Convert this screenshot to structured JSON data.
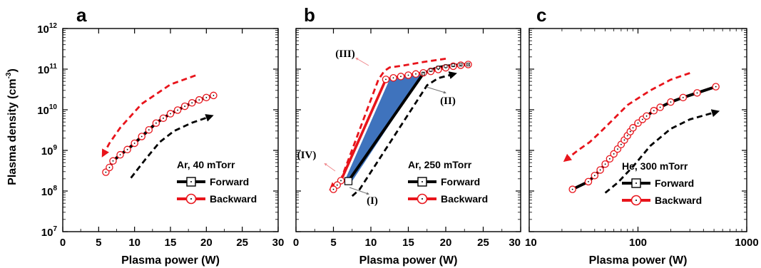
{
  "figure": {
    "ylabel_main": "Plasma density (cm",
    "ylabel_sup": "-3",
    "ylabel_end": ")"
  },
  "chart_data": [
    {
      "panel": "a",
      "type": "line",
      "xlabel": "Plasma power (W)",
      "xscale": "linear",
      "yscale": "log",
      "xlim": [
        0,
        30
      ],
      "ylim": [
        10000000,
        1000000000000
      ],
      "xticks": [
        0,
        5,
        10,
        15,
        20,
        25,
        30
      ],
      "yticks": [
        10000000,
        100000000,
        1000000000,
        10000000000,
        100000000000,
        1000000000000
      ],
      "legend": {
        "title": "Ar, 40 mTorr",
        "placement": "bottom-right",
        "entries": [
          "Forward",
          "Backward"
        ]
      },
      "series": [
        {
          "name": "Forward",
          "color": "#000000",
          "marker": "square-dot",
          "x": [
            6.0,
            6.5,
            7.0,
            8.0,
            9.0,
            10.0,
            11.0,
            12.0,
            13.0,
            14.0,
            15.0,
            16.0,
            17.0,
            18.0,
            19.0,
            20.0,
            21.0
          ],
          "y": [
            290000000,
            380000000,
            550000000,
            780000000,
            1050000000,
            1500000000,
            2200000000,
            3200000000,
            4700000000,
            6200000000,
            8000000000,
            9800000000,
            12200000000,
            14800000000,
            17500000000,
            20000000000,
            22500000000
          ]
        },
        {
          "name": "Backward",
          "color": "#e8141b",
          "marker": "open-circle-dot",
          "x": [
            6.0,
            6.5,
            7.0,
            8.0,
            9.0,
            10.0,
            11.0,
            12.0,
            13.0,
            14.0,
            15.0,
            16.0,
            17.0,
            18.0,
            19.0,
            20.0,
            21.0
          ],
          "y": [
            290000000,
            380000000,
            550000000,
            780000000,
            1050000000,
            1500000000,
            2200000000,
            3200000000,
            4700000000,
            6200000000,
            8000000000,
            9800000000,
            12200000000,
            14800000000,
            17500000000,
            20000000000,
            22500000000
          ]
        }
      ],
      "guides": [
        {
          "color": "#e8141b",
          "direction": "backward",
          "x": [
            18.5,
            15.0,
            11.0,
            8.0,
            6.5,
            5.7
          ],
          "y": [
            70000000000,
            42000000000,
            14000000000,
            3600000000,
            1500000000,
            820000000
          ]
        },
        {
          "color": "#000000",
          "direction": "forward",
          "x": [
            9.5,
            11.5,
            13.5,
            15.5,
            18.0,
            20.5
          ],
          "y": [
            210000000,
            600000000,
            1600000000,
            3000000000,
            4800000000,
            6800000000
          ]
        }
      ],
      "annotations": []
    },
    {
      "panel": "b",
      "type": "line",
      "xlabel": "Plasma power (W)",
      "xscale": "linear",
      "yscale": "log",
      "xlim": [
        0,
        30
      ],
      "ylim": [
        10000000,
        1000000000000
      ],
      "xticks": [
        0,
        5,
        10,
        15,
        20,
        25,
        30
      ],
      "yticks": [
        10000000,
        100000000,
        1000000000,
        10000000000,
        100000000000,
        1000000000000
      ],
      "legend": {
        "title": "Ar, 250 mTorr",
        "placement": "bottom-right",
        "entries": [
          "Forward",
          "Backward"
        ]
      },
      "series": [
        {
          "name": "Forward",
          "color": "#000000",
          "marker": "square-dot",
          "x": [
            7.0,
            17.0,
            18.0,
            19.0,
            20.0,
            21.0,
            22.0,
            23.0
          ],
          "y": [
            175000000,
            78000000000,
            95000000000,
            110000000000,
            118000000000,
            124000000000,
            128000000000,
            130000000000
          ]
        },
        {
          "name": "Backward",
          "color": "#e8141b",
          "marker": "open-circle-dot",
          "x": [
            23.0,
            22.0,
            21.0,
            20.0,
            19.0,
            18.0,
            17.0,
            16.0,
            15.0,
            14.0,
            13.0,
            12.0,
            6.0,
            5.5,
            5.0
          ],
          "y": [
            130000000000,
            125000000000,
            118000000000,
            108000000000,
            98000000000,
            88000000000,
            81000000000,
            76000000000,
            71000000000,
            66000000000,
            61000000000,
            56000000000,
            180000000,
            140000000,
            110000000
          ]
        }
      ],
      "shaded_region": {
        "color": "#3f73bd",
        "x": [
          6.5,
          12.5,
          17.0,
          7.5
        ],
        "y": [
          180000000,
          56000000000,
          78000000000,
          175000000
        ]
      },
      "guides": [
        {
          "color": "#e8141b",
          "direction": "backward",
          "x": [
            20.0,
            17.0,
            14.0,
            12.5,
            11.8,
            11.0,
            6.0,
            4.8
          ],
          "y": [
            180000000000,
            150000000000,
            120000000000,
            110000000000,
            90000000000,
            55000000000,
            190000000,
            120000000
          ]
        },
        {
          "color": "#000000",
          "direction": "forward",
          "x": [
            7.5,
            8.5,
            17.5,
            19.0,
            21.0
          ],
          "y": [
            75000000,
            110000000,
            40000000000,
            60000000000,
            75000000000
          ]
        }
      ],
      "annotations": [
        "(I)",
        "(II)",
        "(III)",
        "(IV)"
      ]
    },
    {
      "panel": "c",
      "type": "line",
      "xlabel": "Plasma power (W)",
      "xscale": "log",
      "yscale": "log",
      "xlim": [
        10,
        1000
      ],
      "ylim": [
        10000000,
        1000000000000
      ],
      "xticks": [
        10,
        100,
        1000
      ],
      "yticks": [
        10000000,
        100000000,
        1000000000,
        10000000000,
        100000000000,
        1000000000000
      ],
      "legend": {
        "title": "He, 300 mTorr",
        "placement": "bottom-right",
        "entries": [
          "Forward",
          "Backward"
        ]
      },
      "series": [
        {
          "name": "Forward",
          "color": "#000000",
          "marker": "square-dot",
          "x": [
            25,
            35,
            40,
            45,
            50,
            55,
            60,
            65,
            70,
            75,
            80,
            85,
            90,
            100,
            110,
            120,
            140,
            160,
            200,
            260,
            350,
            520
          ],
          "y": [
            110000000,
            170000000,
            240000000,
            330000000,
            460000000,
            620000000,
            820000000,
            1080000000,
            1400000000,
            1800000000,
            2300000000,
            2900000000,
            3600000000,
            4700000000,
            5800000000,
            7000000000,
            9500000000,
            11500000000,
            15500000000,
            20000000000,
            26000000000,
            37000000000
          ]
        },
        {
          "name": "Backward",
          "color": "#e8141b",
          "marker": "open-circle-dot",
          "x": [
            25,
            35,
            40,
            45,
            50,
            55,
            60,
            65,
            70,
            75,
            80,
            85,
            90,
            100,
            110,
            120,
            140,
            160,
            200,
            260,
            350,
            520
          ],
          "y": [
            110000000,
            170000000,
            240000000,
            330000000,
            460000000,
            620000000,
            820000000,
            1080000000,
            1400000000,
            1800000000,
            2300000000,
            2900000000,
            3600000000,
            4700000000,
            5800000000,
            7000000000,
            9500000000,
            11500000000,
            15500000000,
            20000000000,
            26000000000,
            37000000000
          ]
        }
      ],
      "guides": [
        {
          "color": "#e8141b",
          "direction": "backward",
          "x": [
            300,
            200,
            130,
            80,
            60,
            45,
            36,
            28,
            22
          ],
          "y": [
            80000000000,
            55000000000,
            30000000000,
            13000000000,
            6000000000,
            2800000000,
            1600000000,
            1000000000,
            600000000
          ]
        },
        {
          "color": "#000000",
          "direction": "forward",
          "x": [
            50,
            65,
            90,
            130,
            200,
            300,
            520
          ],
          "y": [
            90000000,
            160000000,
            400000000,
            1300000000,
            3400000000,
            5800000000,
            8800000000
          ]
        }
      ],
      "annotations": []
    }
  ]
}
